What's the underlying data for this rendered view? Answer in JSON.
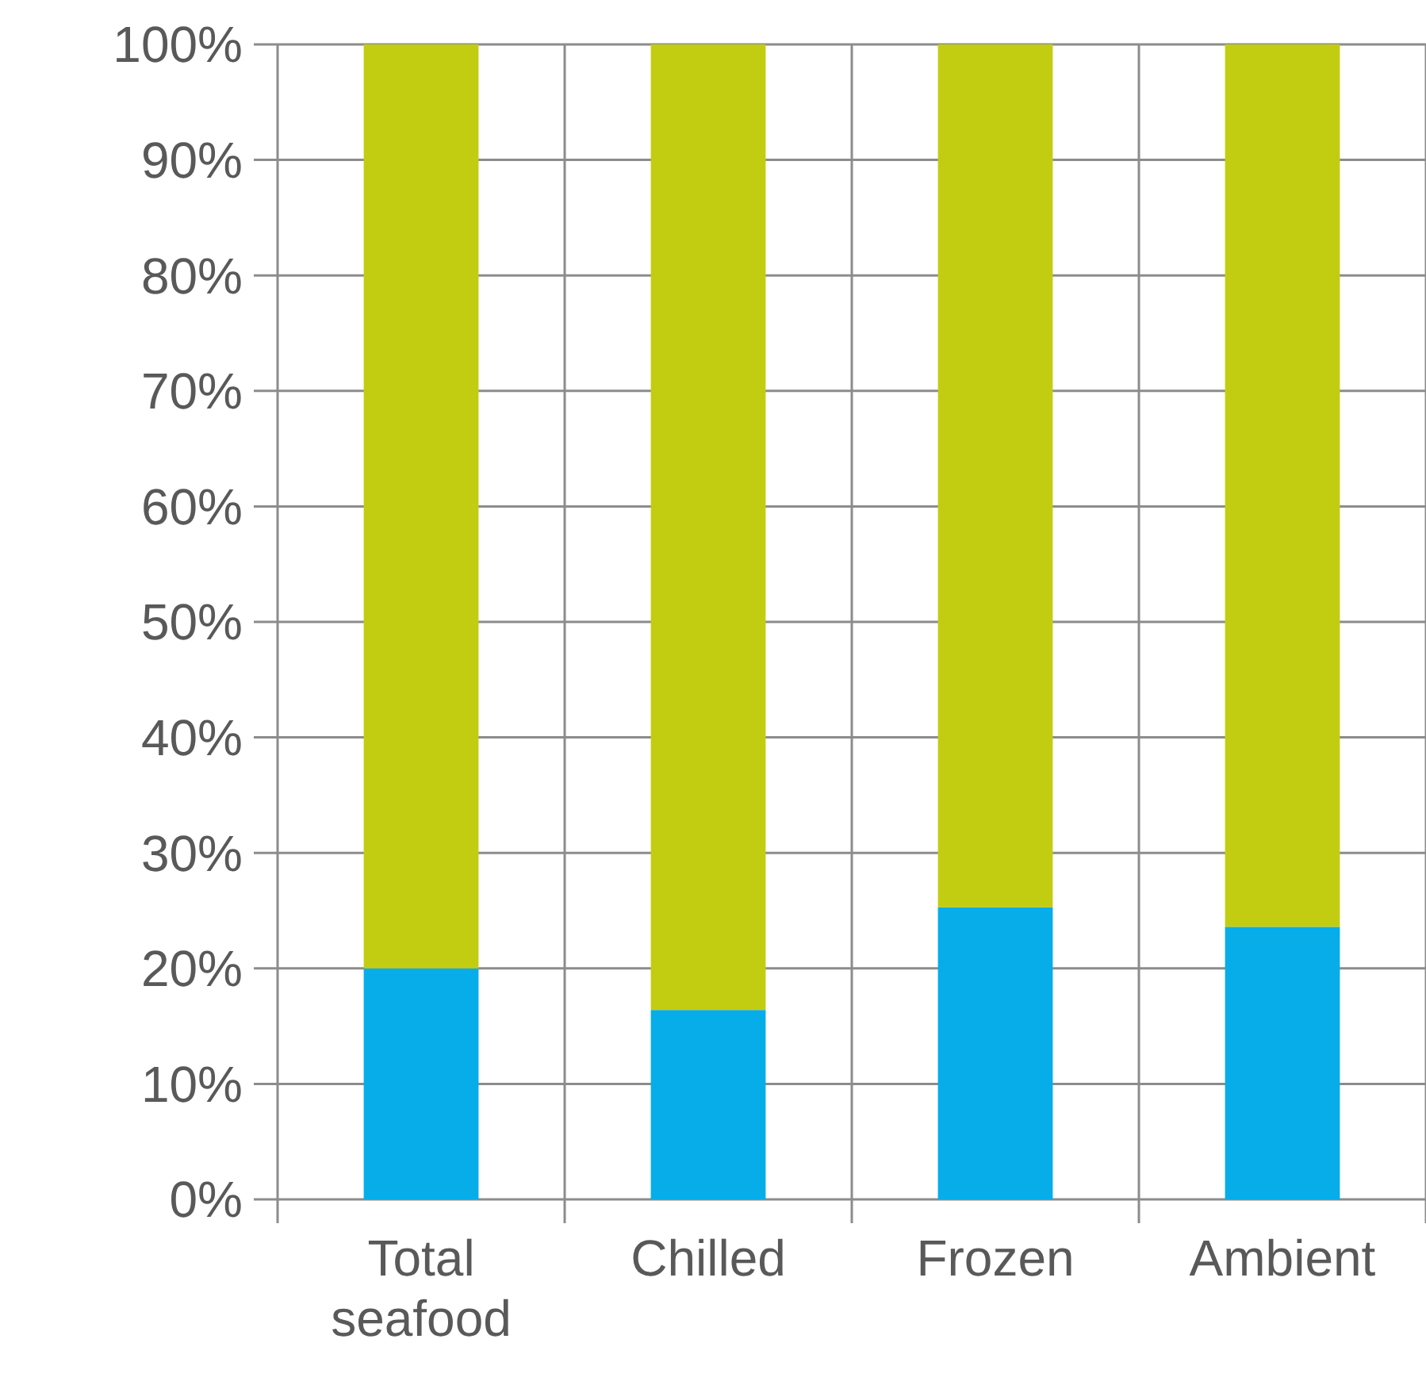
{
  "chart_data": {
    "type": "bar",
    "stacked": true,
    "categories": [
      "Total seafood",
      "Chilled",
      "Frozen",
      "Ambient"
    ],
    "series": [
      {
        "color": "#06ade9",
        "values": [
          20.0,
          16.4,
          25.3,
          23.6
        ]
      },
      {
        "color": "#c2cd12",
        "values": [
          80.0,
          83.6,
          74.7,
          76.4
        ]
      }
    ],
    "ylim": [
      0,
      100
    ],
    "yticks": [
      {
        "value": 0,
        "label": "0%"
      },
      {
        "value": 10,
        "label": "10%"
      },
      {
        "value": 20,
        "label": "20%"
      },
      {
        "value": 30,
        "label": "30%"
      },
      {
        "value": 40,
        "label": "40%"
      },
      {
        "value": 50,
        "label": "50%"
      },
      {
        "value": 60,
        "label": "60%"
      },
      {
        "value": 70,
        "label": "70%"
      },
      {
        "value": 80,
        "label": "80%"
      },
      {
        "value": 90,
        "label": "90%"
      },
      {
        "value": 100,
        "label": "100%"
      }
    ],
    "grid": true
  }
}
